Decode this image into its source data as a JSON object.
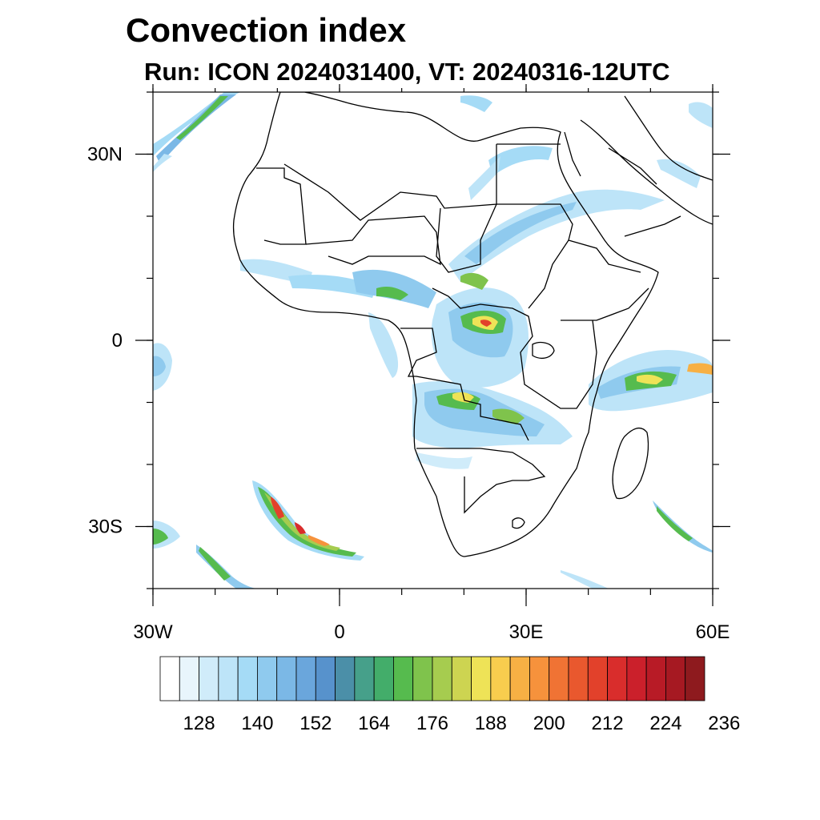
{
  "title": "Convection index",
  "subtitle": "Run: ICON 2024031400,  VT: 20240316-12UTC",
  "map": {
    "lon_range": [
      -30,
      60
    ],
    "lat_range": [
      -40,
      40
    ],
    "lon_ticks": [
      {
        "value": -30,
        "label": "30W"
      },
      {
        "value": 0,
        "label": "0"
      },
      {
        "value": 30,
        "label": "30E"
      },
      {
        "value": 60,
        "label": "60E"
      }
    ],
    "lat_ticks": [
      {
        "value": 30,
        "label": "30N"
      },
      {
        "value": 0,
        "label": "0"
      },
      {
        "value": -30,
        "label": "30S"
      }
    ],
    "minor_lon_step": 10,
    "minor_lat_step": 10
  },
  "colorbar": {
    "labels": [
      "128",
      "140",
      "152",
      "164",
      "176",
      "188",
      "200",
      "212",
      "224",
      "236"
    ],
    "label_start_index": 2,
    "label_every": 3,
    "colors": [
      "#ffffff",
      "#e8f5fc",
      "#d0ecfa",
      "#bde4f8",
      "#a5dbf6",
      "#8fcaee",
      "#7bb8e6",
      "#6aa6dc",
      "#5792cc",
      "#4b8fa8",
      "#46a08a",
      "#43ad6a",
      "#56bb4e",
      "#7fc34c",
      "#a6cc4f",
      "#cdd451",
      "#eee357",
      "#f8cd4e",
      "#f7b044",
      "#f6923c",
      "#f07334",
      "#e9582e",
      "#e2412b",
      "#d92d2c",
      "#cb202b",
      "#b81b26",
      "#a61922",
      "#8e1a1e"
    ]
  },
  "colors": {
    "land": "#ffffff",
    "borders": "#000000"
  }
}
